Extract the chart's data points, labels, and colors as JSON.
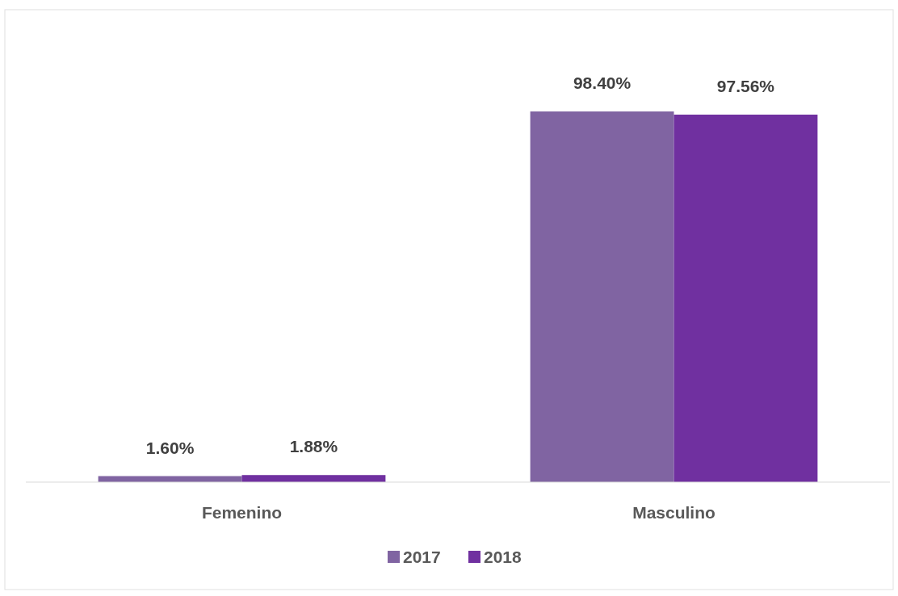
{
  "chart_data": {
    "type": "bar",
    "categories": [
      "Femenino",
      "Masculino"
    ],
    "series": [
      {
        "name": "2017",
        "color": "#8064a2",
        "values": [
          1.6,
          98.4
        ],
        "value_labels": [
          "1.60%",
          "98.40%"
        ]
      },
      {
        "name": "2018",
        "color": "#7030a0",
        "values": [
          1.88,
          97.56
        ],
        "value_labels": [
          "1.88%",
          "97.56%"
        ]
      }
    ],
    "tick_labels": "x",
    "legend": "bottom"
  }
}
